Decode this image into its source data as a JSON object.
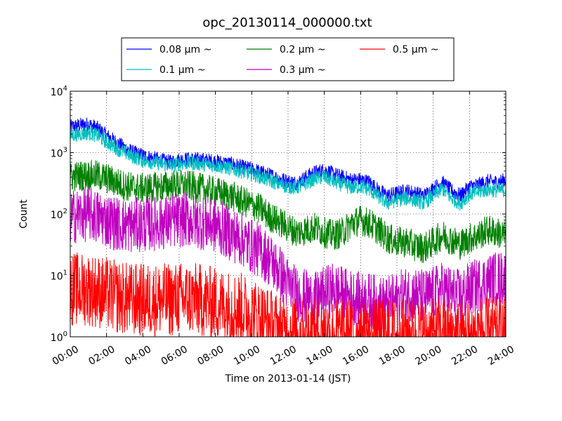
{
  "chart_data": {
    "type": "line",
    "title": "opc_20130114_000000.txt",
    "xlabel": "Time on 2013-01-14 (JST)",
    "ylabel": "Count",
    "xlim_hours": [
      0,
      24
    ],
    "x_ticks": [
      {
        "hour": 0,
        "label": "00:00"
      },
      {
        "hour": 2,
        "label": "02:00"
      },
      {
        "hour": 4,
        "label": "04:00"
      },
      {
        "hour": 6,
        "label": "06:00"
      },
      {
        "hour": 8,
        "label": "08:00"
      },
      {
        "hour": 10,
        "label": "10:00"
      },
      {
        "hour": 12,
        "label": "12:00"
      },
      {
        "hour": 14,
        "label": "14:00"
      },
      {
        "hour": 16,
        "label": "16:00"
      },
      {
        "hour": 18,
        "label": "18:00"
      },
      {
        "hour": 20,
        "label": "20:00"
      },
      {
        "hour": 22,
        "label": "22:00"
      },
      {
        "hour": 24,
        "label": "24:00"
      }
    ],
    "y_scale": "log",
    "ylim": [
      1,
      10000
    ],
    "y_ticks": [
      {
        "value": 1,
        "base": "10",
        "exp": "0"
      },
      {
        "value": 10,
        "base": "10",
        "exp": "1"
      },
      {
        "value": 100,
        "base": "10",
        "exp": "2"
      },
      {
        "value": 1000,
        "base": "10",
        "exp": "3"
      },
      {
        "value": 10000,
        "base": "10",
        "exp": "4"
      }
    ],
    "grid": true,
    "legend_position": "top",
    "series": [
      {
        "name": "0.08 μm ~",
        "color": "#0000ff",
        "x": [
          0,
          0.5,
          1,
          1.5,
          2,
          2.5,
          3,
          3.5,
          4,
          4.5,
          5,
          5.5,
          6,
          6.5,
          7,
          7.5,
          8,
          8.5,
          9,
          9.5,
          10,
          10.5,
          11,
          11.5,
          12,
          12.5,
          13,
          13.5,
          14,
          14.5,
          15,
          15.5,
          16,
          16.5,
          17,
          17.5,
          18,
          18.5,
          19,
          19.5,
          20,
          20.5,
          21,
          21.5,
          22,
          22.5,
          23,
          23.5,
          24
        ],
        "values": [
          2600,
          2800,
          2900,
          2500,
          1900,
          1500,
          1200,
          1000,
          900,
          820,
          750,
          700,
          760,
          780,
          770,
          750,
          720,
          680,
          640,
          580,
          540,
          480,
          430,
          380,
          340,
          320,
          400,
          480,
          520,
          450,
          400,
          360,
          360,
          330,
          240,
          200,
          220,
          240,
          220,
          200,
          260,
          330,
          240,
          200,
          280,
          300,
          340,
          330,
          360
        ],
        "noise": 0.12
      },
      {
        "name": "0.1 μm ~",
        "color": "#00bfbf",
        "x": [
          0,
          0.5,
          1,
          1.5,
          2,
          2.5,
          3,
          3.5,
          4,
          4.5,
          5,
          5.5,
          6,
          6.5,
          7,
          7.5,
          8,
          8.5,
          9,
          9.5,
          10,
          10.5,
          11,
          11.5,
          12,
          12.5,
          13,
          13.5,
          14,
          14.5,
          15,
          15.5,
          16,
          16.5,
          17,
          17.5,
          18,
          18.5,
          19,
          19.5,
          20,
          20.5,
          21,
          21.5,
          22,
          22.5,
          23,
          23.5,
          24
        ],
        "values": [
          1900,
          2000,
          2100,
          1900,
          1500,
          1200,
          1000,
          850,
          760,
          700,
          660,
          620,
          660,
          680,
          670,
          640,
          620,
          580,
          540,
          490,
          450,
          400,
          350,
          310,
          280,
          270,
          320,
          380,
          400,
          340,
          300,
          270,
          280,
          250,
          190,
          150,
          170,
          180,
          170,
          150,
          200,
          260,
          180,
          150,
          210,
          230,
          250,
          240,
          250
        ],
        "noise": 0.12
      },
      {
        "name": "0.2 μm ~",
        "color": "#008000",
        "x": [
          0,
          0.5,
          1,
          1.5,
          2,
          2.5,
          3,
          3.5,
          4,
          4.5,
          5,
          5.5,
          6,
          6.5,
          7,
          7.5,
          8,
          8.5,
          9,
          9.5,
          10,
          10.5,
          11,
          11.5,
          12,
          12.5,
          13,
          13.5,
          14,
          14.5,
          15,
          15.5,
          16,
          16.5,
          17,
          17.5,
          18,
          18.5,
          19,
          19.5,
          20,
          20.5,
          21,
          21.5,
          22,
          22.5,
          23,
          23.5,
          24
        ],
        "values": [
          400,
          420,
          430,
          420,
          380,
          330,
          290,
          270,
          260,
          270,
          280,
          290,
          300,
          290,
          270,
          250,
          230,
          210,
          190,
          160,
          140,
          120,
          90,
          75,
          60,
          50,
          55,
          60,
          50,
          45,
          50,
          70,
          80,
          70,
          55,
          40,
          35,
          35,
          30,
          28,
          35,
          45,
          38,
          32,
          40,
          45,
          55,
          50,
          45
        ],
        "noise": 0.25
      },
      {
        "name": "0.3 μm ~",
        "color": "#bf00bf",
        "x": [
          0,
          0.5,
          1,
          1.5,
          2,
          2.5,
          3,
          3.5,
          4,
          4.5,
          5,
          5.5,
          6,
          6.5,
          7,
          7.5,
          8,
          8.5,
          9,
          9.5,
          10,
          10.5,
          11,
          11.5,
          12,
          12.5,
          13,
          13.5,
          14,
          14.5,
          15,
          15.5,
          16,
          16.5,
          17,
          17.5,
          18,
          18.5,
          19,
          19.5,
          20,
          20.5,
          21,
          21.5,
          22,
          22.5,
          23,
          23.5,
          24
        ],
        "values": [
          90,
          95,
          100,
          90,
          80,
          70,
          65,
          65,
          68,
          70,
          72,
          75,
          80,
          80,
          75,
          70,
          65,
          55,
          45,
          38,
          30,
          25,
          18,
          12,
          7,
          5,
          4.5,
          4,
          5,
          6,
          5,
          4.5,
          4,
          4,
          3.5,
          3.5,
          4,
          5,
          5,
          4.5,
          5,
          6,
          5,
          4.5,
          6,
          7,
          8,
          9,
          9
        ],
        "noise": 0.45
      },
      {
        "name": "0.5 μm ~",
        "color": "#ff0000",
        "x": [
          0,
          0.5,
          1,
          1.5,
          2,
          2.5,
          3,
          3.5,
          4,
          4.5,
          5,
          5.5,
          6,
          6.5,
          7,
          7.5,
          8,
          8.5,
          9,
          9.5,
          10,
          10.5,
          11,
          11.5,
          12,
          12.5,
          13,
          13.5,
          14,
          14.5,
          15,
          15.5,
          16,
          16.5,
          17,
          17.5,
          18,
          18.5,
          19,
          19.5,
          20,
          20.5,
          21,
          21.5,
          22,
          22.5,
          23,
          23.5,
          24
        ],
        "values": [
          6,
          6,
          6,
          5.5,
          5,
          4.5,
          4.2,
          4,
          4,
          4,
          4,
          4,
          4.2,
          4.2,
          4,
          3.8,
          3.5,
          3.2,
          3,
          2.8,
          2.4,
          2,
          1.6,
          1.3,
          1.2,
          1.1,
          1.1,
          1.1,
          1.1,
          1.1,
          1.1,
          1.1,
          1.1,
          1.1,
          1.05,
          1.05,
          1.05,
          1.05,
          1.05,
          1.05,
          1.05,
          1.1,
          1.05,
          1.05,
          1.1,
          1.1,
          1.15,
          1.15,
          1.15
        ],
        "noise": 0.6
      }
    ]
  }
}
